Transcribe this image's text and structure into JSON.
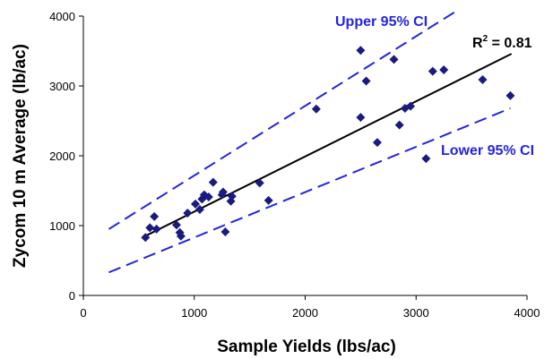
{
  "chart_data": {
    "type": "scatter",
    "xlabel": "Sample Yields (lbs/ac)",
    "ylabel": "Zycom 10 m Average (lb/ac)",
    "xlim": [
      0,
      4000
    ],
    "ylim": [
      0,
      4000
    ],
    "xticks": [
      "0",
      "1000",
      "2000",
      "3000",
      "4000"
    ],
    "yticks": [
      "0",
      "1000",
      "2000",
      "3000",
      "4000"
    ],
    "grid": false,
    "marker": "diamond",
    "colors": {
      "points": "#1a1a80",
      "fit": "#000000",
      "ci": "#2424e0"
    },
    "points": [
      [
        560,
        830
      ],
      [
        600,
        970
      ],
      [
        640,
        1130
      ],
      [
        660,
        950
      ],
      [
        840,
        1010
      ],
      [
        870,
        900
      ],
      [
        880,
        850
      ],
      [
        940,
        1180
      ],
      [
        1010,
        1310
      ],
      [
        1050,
        1230
      ],
      [
        1070,
        1380
      ],
      [
        1090,
        1440
      ],
      [
        1130,
        1410
      ],
      [
        1170,
        1620
      ],
      [
        1250,
        1440
      ],
      [
        1260,
        1480
      ],
      [
        1280,
        910
      ],
      [
        1330,
        1350
      ],
      [
        1340,
        1420
      ],
      [
        1590,
        1610
      ],
      [
        1670,
        1360
      ],
      [
        2100,
        2670
      ],
      [
        2500,
        3510
      ],
      [
        2500,
        2550
      ],
      [
        2550,
        3070
      ],
      [
        2650,
        2190
      ],
      [
        2800,
        3380
      ],
      [
        2850,
        2440
      ],
      [
        2900,
        2680
      ],
      [
        2950,
        2710
      ],
      [
        3090,
        1960
      ],
      [
        3150,
        3210
      ],
      [
        3250,
        3230
      ],
      [
        3600,
        3090
      ],
      [
        3850,
        2860
      ]
    ],
    "fit_line": {
      "x": [
        570,
        3860
      ],
      "y": [
        860,
        3460
      ]
    },
    "upper_ci": {
      "x": [
        230,
        3350
      ],
      "y": [
        950,
        4060
      ]
    },
    "lower_ci": {
      "x": [
        230,
        3850
      ],
      "y": [
        330,
        2680
      ]
    },
    "annotations": {
      "r2_base": "R",
      "r2_sup": "2",
      "r2_value": " = 0.81",
      "upper": "Upper 95% CI",
      "lower": "Lower 95% CI"
    }
  }
}
